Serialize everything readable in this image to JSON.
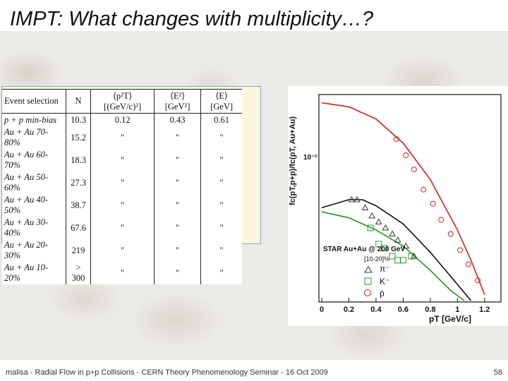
{
  "slide": {
    "title": "IMPT: What changes with multiplicity…?",
    "footer": "malisa - Radial Flow in p+p Collisions -  CERN Theory Phenomenology Seminar  - 16 Oct 2009",
    "page_number": "58"
  },
  "table": {
    "headers": [
      "Event selection",
      "N",
      "⟨p²T⟩ [(GeV/c)²]",
      "⟨E²⟩ [GeV²]",
      "⟨E⟩ [GeV]"
    ],
    "rows": [
      [
        "p + p min-bias",
        "10.3",
        "0.12",
        "0.43",
        "0.61"
      ],
      [
        "Au + Au 70-80%",
        "15.2",
        "\"",
        "\"",
        "\""
      ],
      [
        "Au + Au 60-70%",
        "18.3",
        "\"",
        "\"",
        "\""
      ],
      [
        "Au + Au 50-60%",
        "27.3",
        "\"",
        "\"",
        "\""
      ],
      [
        "Au + Au 40-50%",
        "38.7",
        "\"",
        "\"",
        "\""
      ],
      [
        "Au + Au 30-40%",
        "67.6",
        "\"",
        "\"",
        "\""
      ],
      [
        "Au + Au 20-30%",
        "219",
        "\"",
        "\"",
        "\""
      ],
      [
        "Au + Au 10-20%",
        "> 300",
        "\"",
        "\"",
        "\""
      ]
    ]
  },
  "chart_data": {
    "type": "scatter",
    "ylabel": "fc(pT,p+p)/fc(pT, Au+Au)",
    "xlabel": "pT [GeV/c]",
    "xlim": [
      0,
      1.3
    ],
    "ylog": true,
    "y_tick_label": "10⁻²",
    "x_ticks": [
      0,
      0.2,
      0.4,
      0.6,
      0.8,
      1,
      1.2
    ],
    "x_tick_labels": [
      "0",
      "0.2",
      "0.4",
      "0.6",
      "0.8",
      "1",
      "1.2"
    ],
    "legend": {
      "title": "STAR Au+Au @ 200 GeV",
      "subtitle": "[10-20]%",
      "entries": [
        "π⁻",
        "K⁻",
        "p̄"
      ]
    },
    "series": [
      {
        "color": "#d62020",
        "marker": "circle",
        "x": [
          0.55,
          0.62,
          0.68,
          0.75,
          0.82,
          0.88,
          0.95,
          1.02,
          1.08,
          1.15
        ],
        "y": [
          0.8,
          0.72,
          0.65,
          0.55,
          0.48,
          0.4,
          0.33,
          0.25,
          0.18,
          0.1
        ]
      },
      {
        "color": "#333333",
        "marker": "triangle",
        "x": [
          0.22,
          0.26,
          0.32,
          0.37,
          0.42,
          0.47,
          0.52,
          0.56,
          0.62,
          0.68
        ],
        "y": [
          0.5,
          0.5,
          0.46,
          0.42,
          0.39,
          0.36,
          0.33,
          0.3,
          0.27,
          0.22
        ]
      },
      {
        "color": "#2a9a2a",
        "marker": "square",
        "x": [
          0.36,
          0.42,
          0.46,
          0.52,
          0.56,
          0.6,
          0.66
        ],
        "y": [
          0.36,
          0.28,
          0.26,
          0.22,
          0.2,
          0.2,
          0.22
        ]
      }
    ],
    "curves": [
      {
        "color": "#d62020",
        "x": [
          0.0,
          0.2,
          0.4,
          0.6,
          0.8,
          1.0,
          1.1,
          1.2
        ],
        "y": [
          0.98,
          0.96,
          0.9,
          0.78,
          0.6,
          0.35,
          0.2,
          0.03
        ]
      },
      {
        "color": "#111111",
        "x": [
          0.0,
          0.2,
          0.3,
          0.4,
          0.6,
          0.8,
          0.95,
          1.1
        ],
        "y": [
          0.46,
          0.5,
          0.5,
          0.47,
          0.38,
          0.24,
          0.12,
          0.0
        ]
      },
      {
        "color": "#1a9a1a",
        "x": [
          0.0,
          0.2,
          0.4,
          0.6,
          0.8,
          0.95,
          1.05
        ],
        "y": [
          0.44,
          0.41,
          0.35,
          0.27,
          0.15,
          0.05,
          0.0
        ]
      }
    ]
  }
}
